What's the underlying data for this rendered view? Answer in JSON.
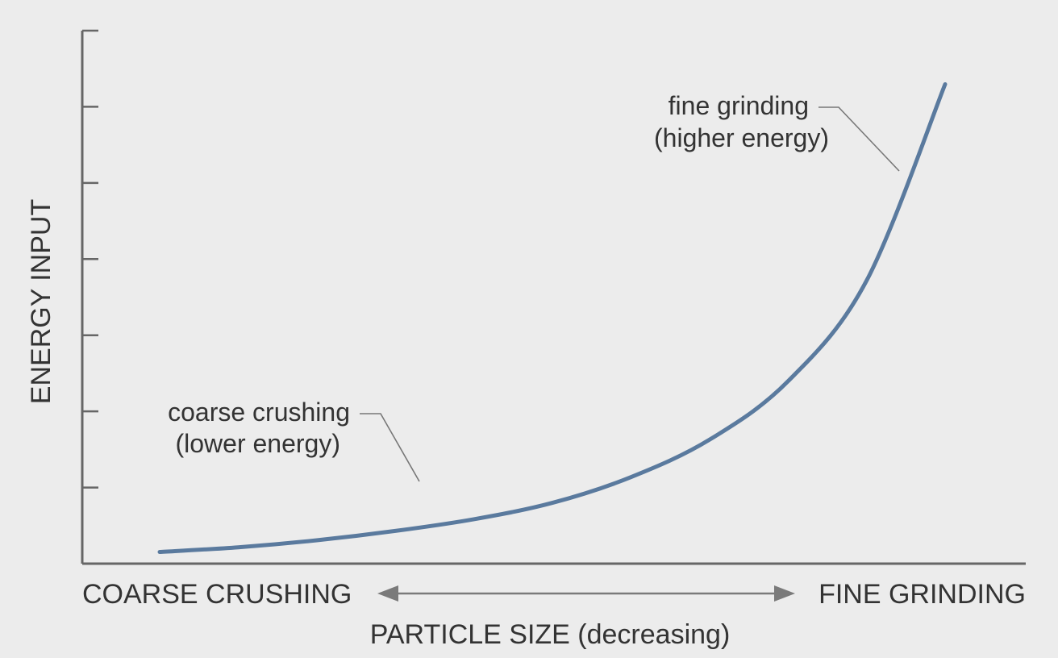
{
  "chart_data": {
    "type": "line",
    "title": "",
    "xlabel": "PARTICLE SIZE (decreasing)",
    "ylabel": "ENERGY INPUT",
    "x_end_labels": {
      "left": "COARSE CRUSHING",
      "right": "FINE GRINDING"
    },
    "y_tick_count": 7,
    "grid": false,
    "legend": "none",
    "series": [
      {
        "color": "#5a7a9e",
        "points": [
          [
            0.0,
            0.05
          ],
          [
            0.1,
            0.07
          ],
          [
            0.2,
            0.1
          ],
          [
            0.3,
            0.14
          ],
          [
            0.4,
            0.19
          ],
          [
            0.5,
            0.26
          ],
          [
            0.6,
            0.37
          ],
          [
            0.7,
            0.53
          ],
          [
            0.8,
            0.78
          ],
          [
            0.9,
            1.21
          ],
          [
            1.0,
            2.05
          ]
        ]
      }
    ],
    "annotations": [
      {
        "lines": [
          "fine grinding",
          "(higher energy)"
        ]
      },
      {
        "lines": [
          "coarse crushing",
          "(lower energy)"
        ]
      }
    ]
  },
  "colors": {
    "axis": "#666666",
    "curve": "#5a7a9e",
    "text": "#333333",
    "background": "#ececec"
  }
}
